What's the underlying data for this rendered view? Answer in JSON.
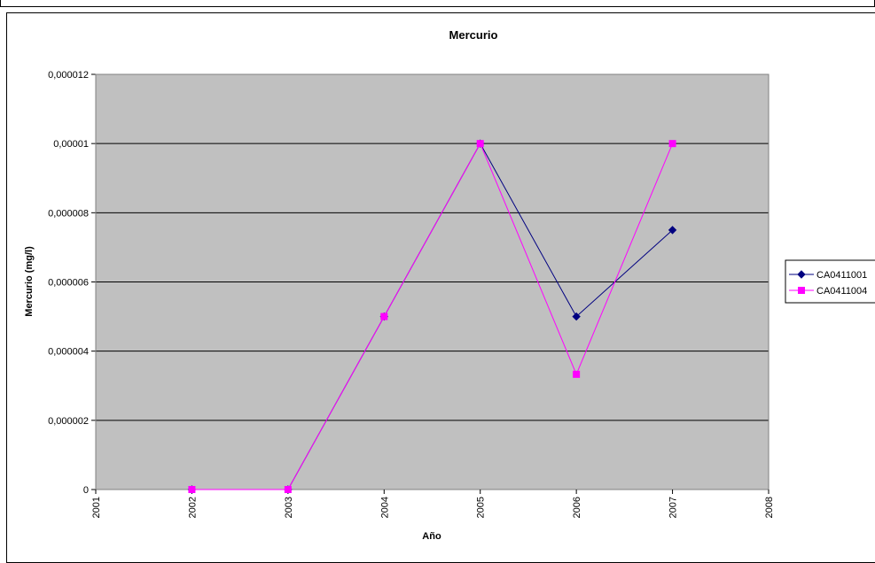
{
  "chart_data": {
    "type": "line",
    "title": "Mercurio",
    "xlabel": "Año",
    "ylabel": "Mercurio (mg/l)",
    "x_ticks": [
      "2001",
      "2002",
      "2003",
      "2004",
      "2005",
      "2006",
      "2007",
      "2008"
    ],
    "y_ticks": [
      "0",
      "0,000002",
      "0,000004",
      "0,000006",
      "0,000008",
      "0,00001",
      "0,000012"
    ],
    "xlim": [
      2001,
      2008
    ],
    "ylim": [
      0,
      1.2e-05
    ],
    "grid": true,
    "legend_position": "right",
    "series": [
      {
        "name": "CA0411001",
        "color": "#000080",
        "marker": "diamond",
        "x": [
          2002,
          2003,
          2004,
          2005,
          2006,
          2007
        ],
        "values": [
          0,
          0,
          5e-06,
          1e-05,
          5e-06,
          7.5e-06
        ]
      },
      {
        "name": "CA0411004",
        "color": "#ff00ff",
        "marker": "square",
        "x": [
          2002,
          2003,
          2004,
          2005,
          2006,
          2007
        ],
        "values": [
          0,
          0,
          5e-06,
          1e-05,
          3.33e-06,
          1e-05
        ]
      }
    ]
  },
  "colors": {
    "plot_background": "#c0c0c0",
    "gridline": "#000000"
  }
}
